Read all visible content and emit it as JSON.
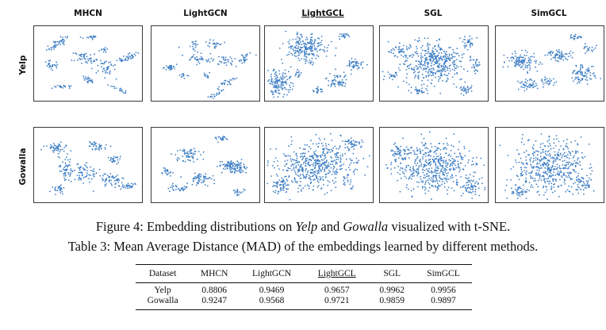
{
  "figure": {
    "methods": [
      "MHCN",
      "LightGCN",
      "LightGCL",
      "SGL",
      "SimGCL"
    ],
    "highlighted_method": "LightGCL",
    "datasets": [
      "Yelp",
      "Gowalla"
    ],
    "point_color": "#3f7fc4",
    "caption_prefix": "Figure 4: Embedding distributions on ",
    "caption_dataset_1": "Yelp",
    "caption_middle": " and ",
    "caption_dataset_2": "Gowalla",
    "caption_suffix": " visualized with t-SNE."
  },
  "table": {
    "caption": "Table 3: Mean Average Distance (MAD) of the embeddings learned by different methods.",
    "headers": [
      "Dataset",
      "MHCN",
      "LightGCN",
      "LightGCL",
      "SGL",
      "SimGCL"
    ],
    "rows": [
      [
        "Yelp",
        "0.8806",
        "0.9469",
        "0.9657",
        "0.9962",
        "0.9956"
      ],
      [
        "Gowalla",
        "0.9247",
        "0.9568",
        "0.9721",
        "0.9859",
        "0.9897"
      ]
    ]
  }
}
